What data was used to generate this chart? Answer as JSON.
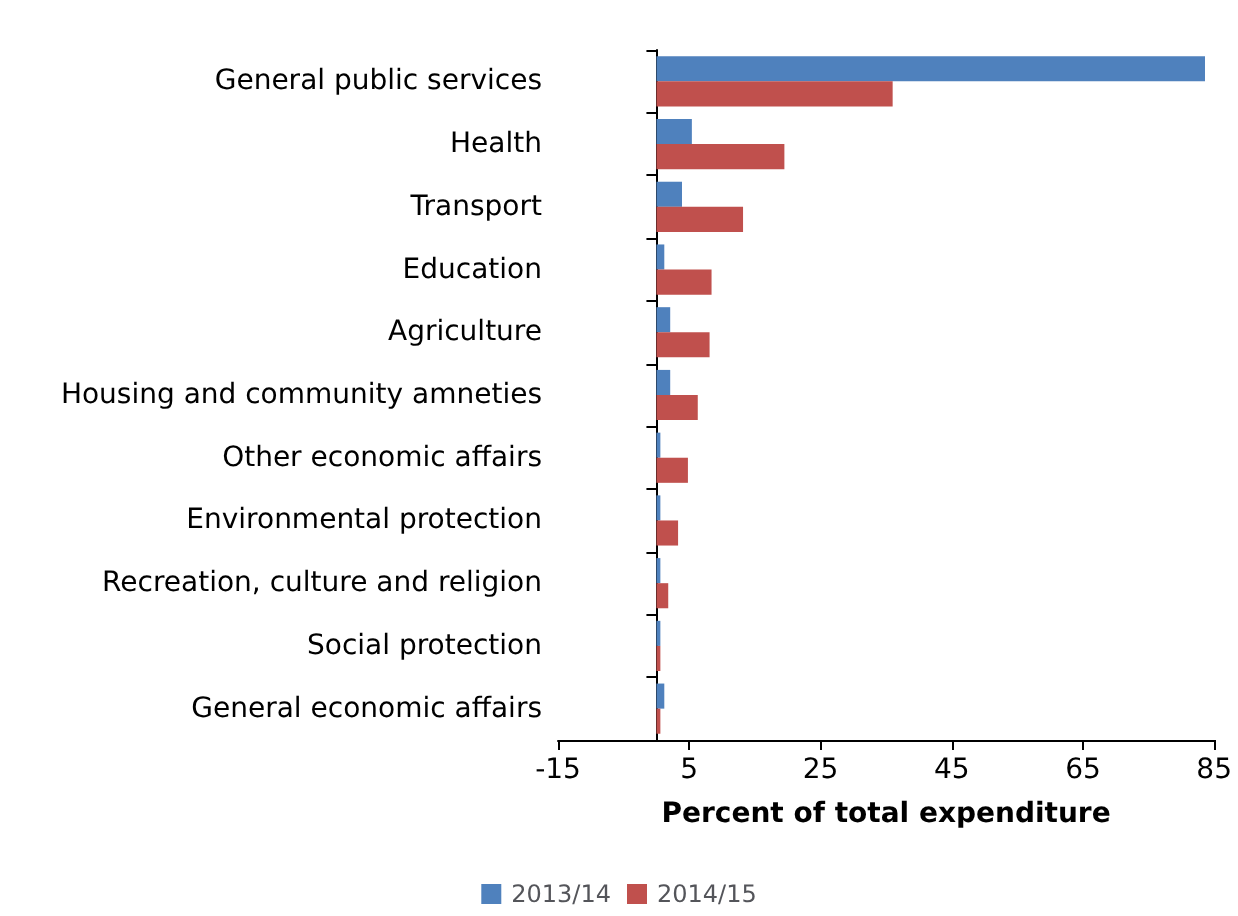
{
  "chart_data": {
    "type": "bar",
    "orientation": "horizontal",
    "xlabel": "Percent of total expenditure",
    "categories": [
      "General public services",
      "Health",
      "Transport",
      "Education",
      "Agriculture",
      "Housing and community amneties",
      "Other economic affairs",
      "Environmental protection",
      "Recreation, culture and religion",
      "Social protection",
      "General economic affairs"
    ],
    "series": [
      {
        "name": "2013/14",
        "color": "#4f81bd",
        "values": [
          83.6,
          5.4,
          3.9,
          1.2,
          2.1,
          2.1,
          0.6,
          0.6,
          0.6,
          0.6,
          1.2
        ]
      },
      {
        "name": "2014/15",
        "color": "#c0504d",
        "values": [
          36.0,
          19.5,
          13.2,
          8.4,
          8.1,
          6.3,
          4.8,
          3.3,
          1.8,
          0.6,
          0.6
        ]
      }
    ],
    "xlim": [
      -15,
      85
    ],
    "xticks": [
      -15,
      5,
      25,
      45,
      65,
      85
    ],
    "grid": false,
    "legend": "bottom"
  }
}
